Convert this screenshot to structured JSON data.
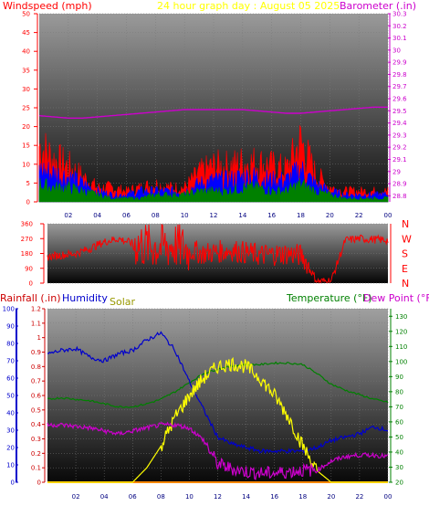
{
  "colors": {
    "wind": "#ff0000",
    "barometer": "#cc00cc",
    "title": "#ffff00",
    "humidity": "#0000cc",
    "solar": "#999900",
    "temperature": "#008000",
    "dewpoint": "#cc00cc",
    "rain": "#cc0000",
    "gust": "#ff0000",
    "avgwind": "#0000ff",
    "lowwind": "#008000",
    "direction": "#ff0000",
    "temp_line": "#339933",
    "dew_line": "#ee00ee",
    "hum_line": "#1a1aff",
    "solar_line": "#ffff00",
    "rain_line": "#ff8800"
  },
  "headers": {
    "title": "24 hour graph day : August 05 2025",
    "windspeed": "Windspeed (mph)",
    "barometer": "Barometer (.in)",
    "rainfall": "Rainfall (.in)",
    "humidity": "Humidity",
    "solar": "Solar",
    "temperature": "Temperature (°F)",
    "dewpoint": "Dew Point (°F)"
  },
  "chart_data": [
    {
      "type": "line",
      "panel": "wind-barometer",
      "x_ticks": [
        "02",
        "04",
        "06",
        "08",
        "10",
        "12",
        "14",
        "16",
        "18",
        "20",
        "22",
        "00"
      ],
      "left_axis": {
        "label": "Windspeed (mph)",
        "ylim": [
          0,
          50
        ],
        "ticks": [
          "0",
          "5",
          "10",
          "15",
          "20",
          "25",
          "30",
          "35",
          "40",
          "45",
          "50"
        ]
      },
      "right_axis": {
        "label": "Barometer (.in)",
        "ylim": [
          28.75,
          30.3
        ],
        "ticks": [
          "28.8",
          "28.9",
          "29",
          "29.1",
          "29.2",
          "29.3",
          "29.4",
          "29.5",
          "29.6",
          "29.7",
          "29.8",
          "29.9",
          "30",
          "30.1",
          "30.2",
          "30.3"
        ]
      },
      "x": [
        0,
        1,
        2,
        3,
        4,
        5,
        6,
        7,
        8,
        9,
        10,
        11,
        12,
        13,
        14,
        15,
        16,
        17,
        18,
        19,
        20,
        21,
        22,
        23,
        24
      ],
      "series": [
        {
          "key": "gust",
          "axis": "left",
          "values": [
            16,
            12,
            10,
            7,
            4,
            4,
            3,
            4,
            5,
            4,
            4,
            8,
            10,
            10,
            11,
            11,
            10,
            9,
            17,
            8,
            4,
            3,
            3,
            3,
            3
          ]
        },
        {
          "key": "avgwind",
          "axis": "left",
          "values": [
            9,
            8,
            7,
            5,
            3,
            2,
            2,
            3,
            3,
            3,
            3,
            5,
            6,
            6,
            7,
            7,
            6,
            6,
            9,
            5,
            3,
            2,
            2,
            2,
            2
          ]
        },
        {
          "key": "lowwind",
          "axis": "left",
          "values": [
            5,
            4,
            4,
            3,
            2,
            1,
            1,
            1,
            2,
            2,
            2,
            3,
            3,
            3,
            4,
            4,
            3,
            3,
            5,
            3,
            2,
            1,
            1,
            1,
            1
          ]
        },
        {
          "key": "barometer",
          "axis": "right",
          "values": [
            29.46,
            29.45,
            29.44,
            29.44,
            29.45,
            29.46,
            29.47,
            29.48,
            29.49,
            29.5,
            29.51,
            29.51,
            29.51,
            29.51,
            29.51,
            29.5,
            29.49,
            29.48,
            29.48,
            29.49,
            29.5,
            29.51,
            29.52,
            29.53,
            29.53
          ]
        }
      ]
    },
    {
      "type": "scatter",
      "panel": "wind-direction",
      "x_ticks": [],
      "left_axis": {
        "ylim": [
          0,
          360
        ],
        "ticks": [
          "0",
          "90",
          "180",
          "270",
          "360"
        ]
      },
      "right_labels": [
        "N",
        "W",
        "S",
        "E",
        "N"
      ],
      "x": [
        0,
        1,
        2,
        3,
        4,
        5,
        6,
        7,
        8,
        9,
        10,
        11,
        12,
        13,
        14,
        15,
        16,
        17,
        18,
        19,
        20,
        21,
        22,
        23,
        24
      ],
      "series": [
        {
          "key": "direction",
          "values": [
            160,
            170,
            180,
            210,
            250,
            270,
            240,
            230,
            220,
            230,
            200,
            180,
            190,
            200,
            185,
            170,
            175,
            180,
            165,
            10,
            15,
            260,
            270,
            265,
            260
          ]
        }
      ]
    },
    {
      "type": "line",
      "panel": "rain-humidity-solar-temp",
      "x_ticks": [
        "02",
        "04",
        "06",
        "08",
        "10",
        "12",
        "14",
        "16",
        "18",
        "20",
        "22",
        "00"
      ],
      "rain_axis": {
        "label": "Rainfall (.in)",
        "ylim": [
          0,
          1.2
        ],
        "ticks": [
          "0",
          "0.1",
          "0.2",
          "0.3",
          "0.4",
          "0.5",
          "0.6",
          "0.7",
          "0.8",
          "0.9",
          "1",
          "1.1",
          "1.2"
        ]
      },
      "humidity_axis": {
        "label": "Humidity",
        "ylim": [
          0,
          100
        ],
        "ticks": [
          "0",
          "10",
          "20",
          "30",
          "40",
          "50",
          "60",
          "70",
          "80",
          "90",
          "100"
        ]
      },
      "temp_axis": {
        "label": "Temperature (°F)",
        "ylim": [
          20,
          135
        ],
        "ticks": [
          "20",
          "30",
          "40",
          "50",
          "60",
          "70",
          "80",
          "90",
          "100",
          "110",
          "120",
          "130"
        ]
      },
      "x": [
        0,
        1,
        2,
        3,
        4,
        5,
        6,
        7,
        8,
        9,
        10,
        11,
        12,
        13,
        14,
        15,
        16,
        17,
        18,
        19,
        20,
        21,
        22,
        23,
        24
      ],
      "series": [
        {
          "key": "temperature",
          "axis": "temp",
          "values": [
            75,
            76,
            75,
            74,
            72,
            70,
            70,
            72,
            75,
            80,
            86,
            92,
            95,
            97,
            98,
            98,
            99,
            99,
            98,
            92,
            85,
            81,
            78,
            75,
            73
          ]
        },
        {
          "key": "dewpoint",
          "axis": "temp",
          "values": [
            58,
            58,
            57,
            56,
            54,
            52,
            54,
            56,
            58,
            58,
            56,
            48,
            32,
            29,
            27,
            26,
            26,
            27,
            28,
            28,
            34,
            37,
            38,
            38,
            37
          ]
        },
        {
          "key": "humidity",
          "axis": "humidity",
          "values": [
            74,
            76,
            77,
            72,
            70,
            74,
            76,
            82,
            86,
            76,
            58,
            42,
            26,
            22,
            20,
            18,
            18,
            18,
            18,
            20,
            24,
            26,
            28,
            32,
            30
          ]
        },
        {
          "key": "solar",
          "axis": "rain",
          "values": [
            0,
            0,
            0,
            0,
            0,
            0,
            0,
            0.1,
            0.25,
            0.45,
            0.6,
            0.72,
            0.8,
            0.82,
            0.8,
            0.72,
            0.6,
            0.45,
            0.25,
            0.08,
            0,
            0,
            0,
            0,
            0
          ]
        },
        {
          "key": "rain",
          "axis": "rain",
          "values": [
            0,
            0,
            0,
            0,
            0,
            0,
            0,
            0,
            0,
            0,
            0,
            0,
            0,
            0,
            0,
            0,
            0,
            0,
            0,
            0,
            0,
            0,
            0,
            0,
            0
          ]
        }
      ]
    }
  ]
}
